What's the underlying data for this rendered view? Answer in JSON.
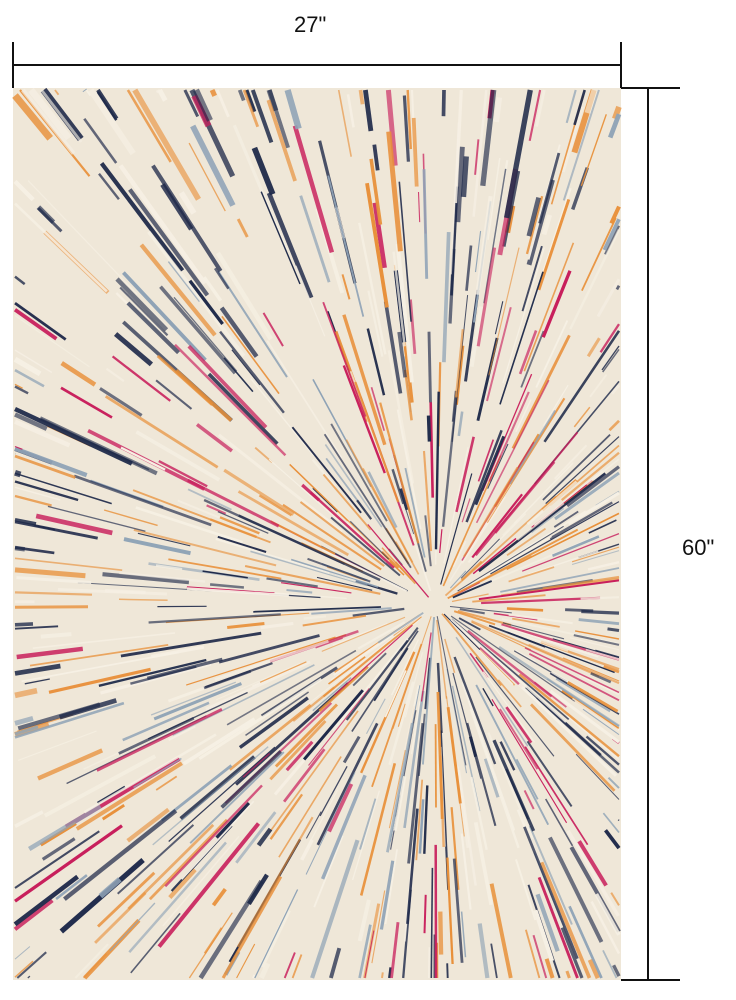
{
  "dimensions": {
    "width_label": "27\"",
    "height_label": "60\""
  },
  "rug": {
    "pattern": "starburst",
    "colors": {
      "background": "#efe7d8",
      "navy": "#1f2a4a",
      "orange": "#e8903a",
      "magenta": "#c81f5c",
      "cream": "#f6f0e4",
      "slate": "#8fa3b6"
    }
  }
}
